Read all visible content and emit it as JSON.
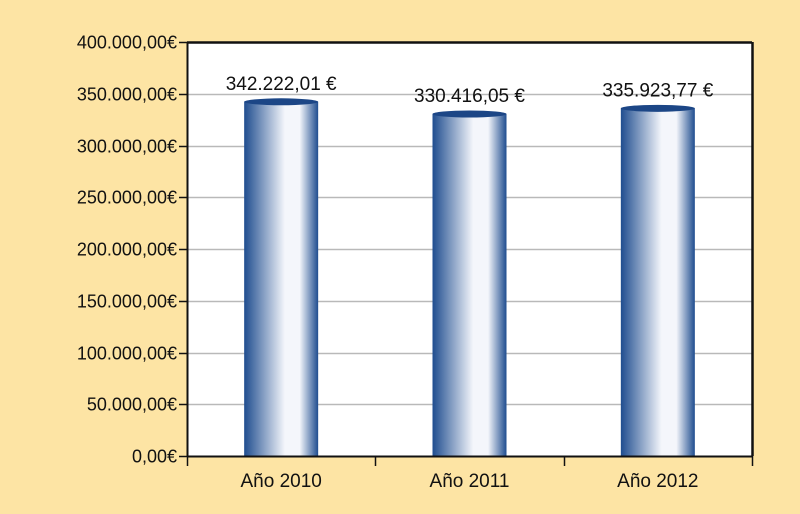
{
  "colors": {
    "page_background": "#fde4a4",
    "plot_background": "#ffffff",
    "grid": "#b9b9b9",
    "axis": "#111111",
    "bar_dark": "#1f4d8f",
    "bar_light": "#f4f6fb",
    "bar_top": "#1c4686"
  },
  "chart_data": {
    "type": "bar",
    "categories": [
      "Año 2010",
      "Año 2011",
      "Año 2012"
    ],
    "values": [
      342222.01,
      330416.05,
      335923.77
    ],
    "data_labels": [
      "342.222,01 €",
      "330.416,05 €",
      "335.923,77 €"
    ],
    "ylim": [
      0,
      400000
    ],
    "y_ticks": [
      0,
      50000,
      100000,
      150000,
      200000,
      250000,
      300000,
      350000,
      400000
    ],
    "y_tick_labels": [
      "0,00€",
      "50.000,00€",
      "100.000,00€",
      "150.000,00€",
      "200.000,00€",
      "250.000,00€",
      "300.000,00€",
      "350.000,00€",
      "400.000,00€"
    ],
    "title": "",
    "xlabel": "",
    "ylabel": "",
    "grid": true,
    "legend": "none",
    "bar_style": "cylinder"
  }
}
